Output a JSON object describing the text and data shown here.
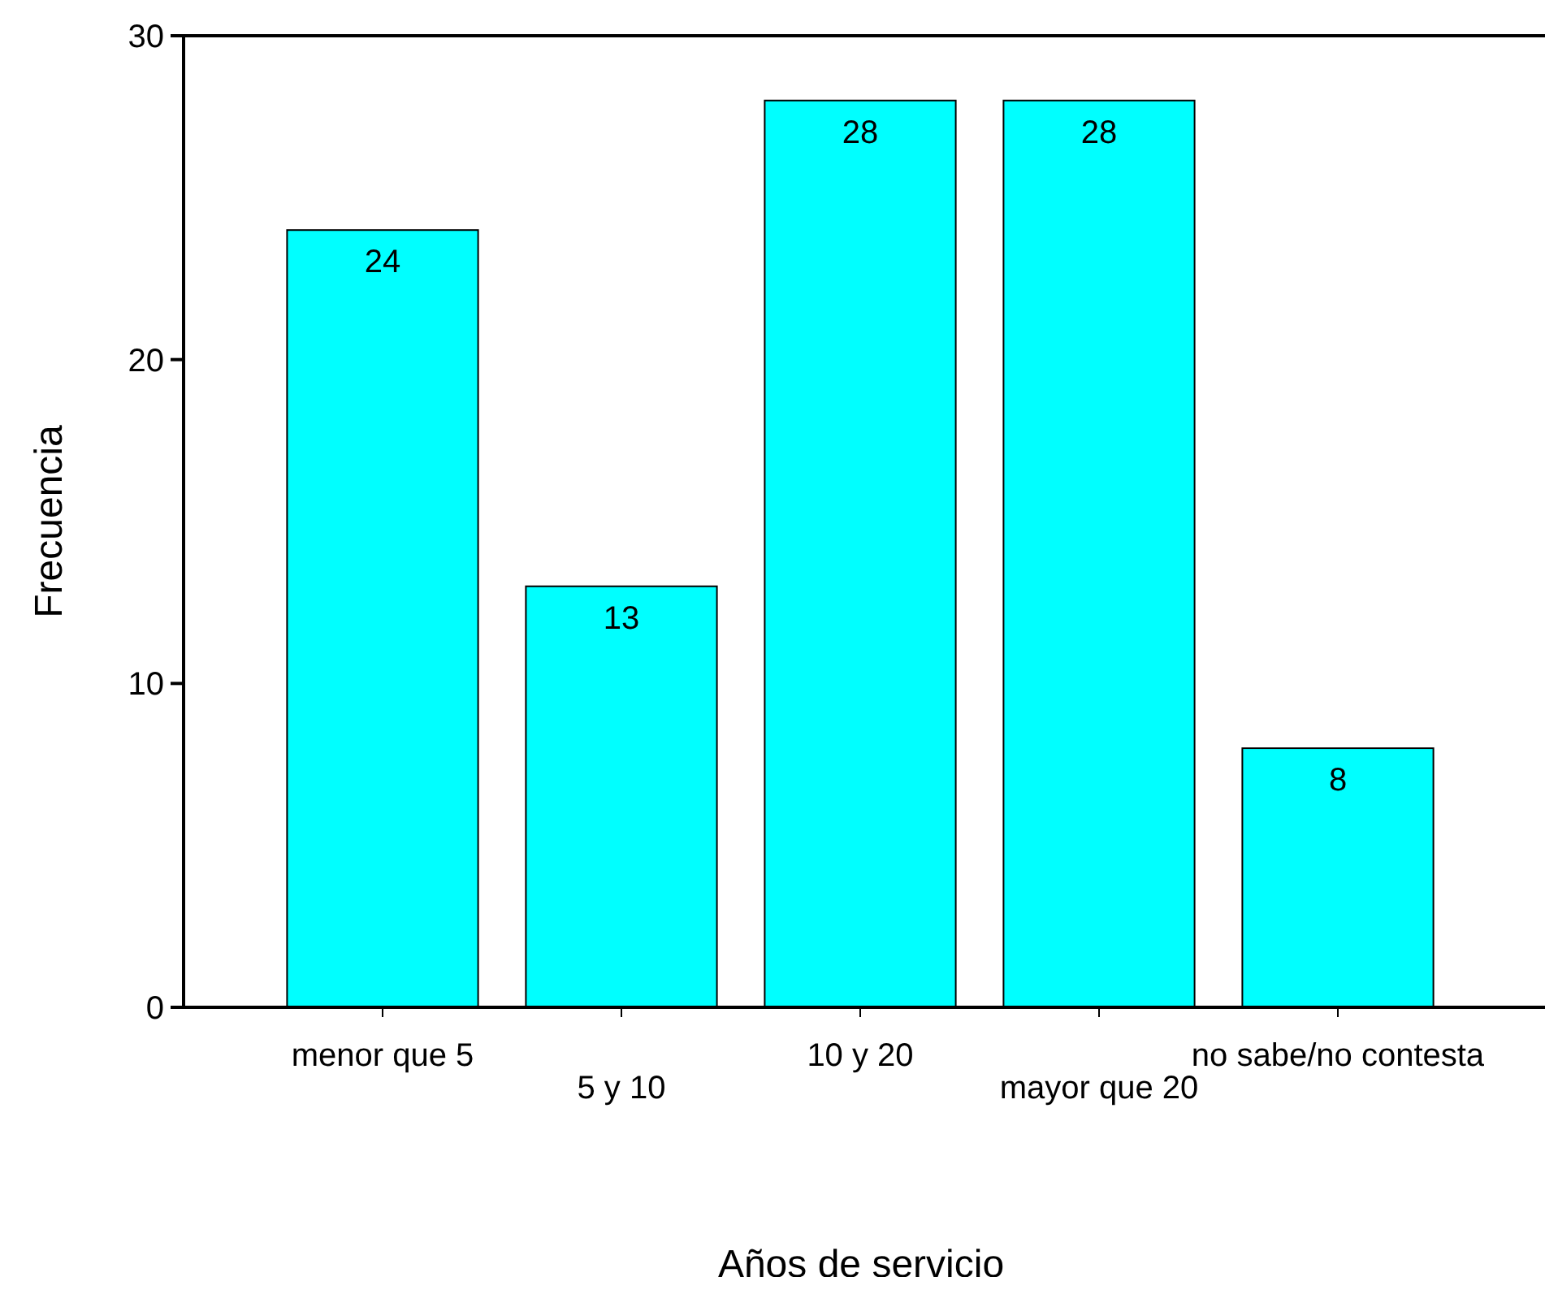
{
  "chart_data": {
    "type": "bar",
    "xlabel": "Años de servicio",
    "ylabel": "Frecuencia",
    "categories": [
      "menor que 5",
      "5 y 10",
      "10 y 20",
      "mayor que 20",
      "no sabe/no contesta"
    ],
    "values": [
      24,
      13,
      28,
      28,
      8
    ],
    "color": "#00ffff",
    "ylim": [
      0,
      30
    ],
    "yticks": [
      0,
      10,
      20,
      30
    ],
    "data_labels": true
  }
}
